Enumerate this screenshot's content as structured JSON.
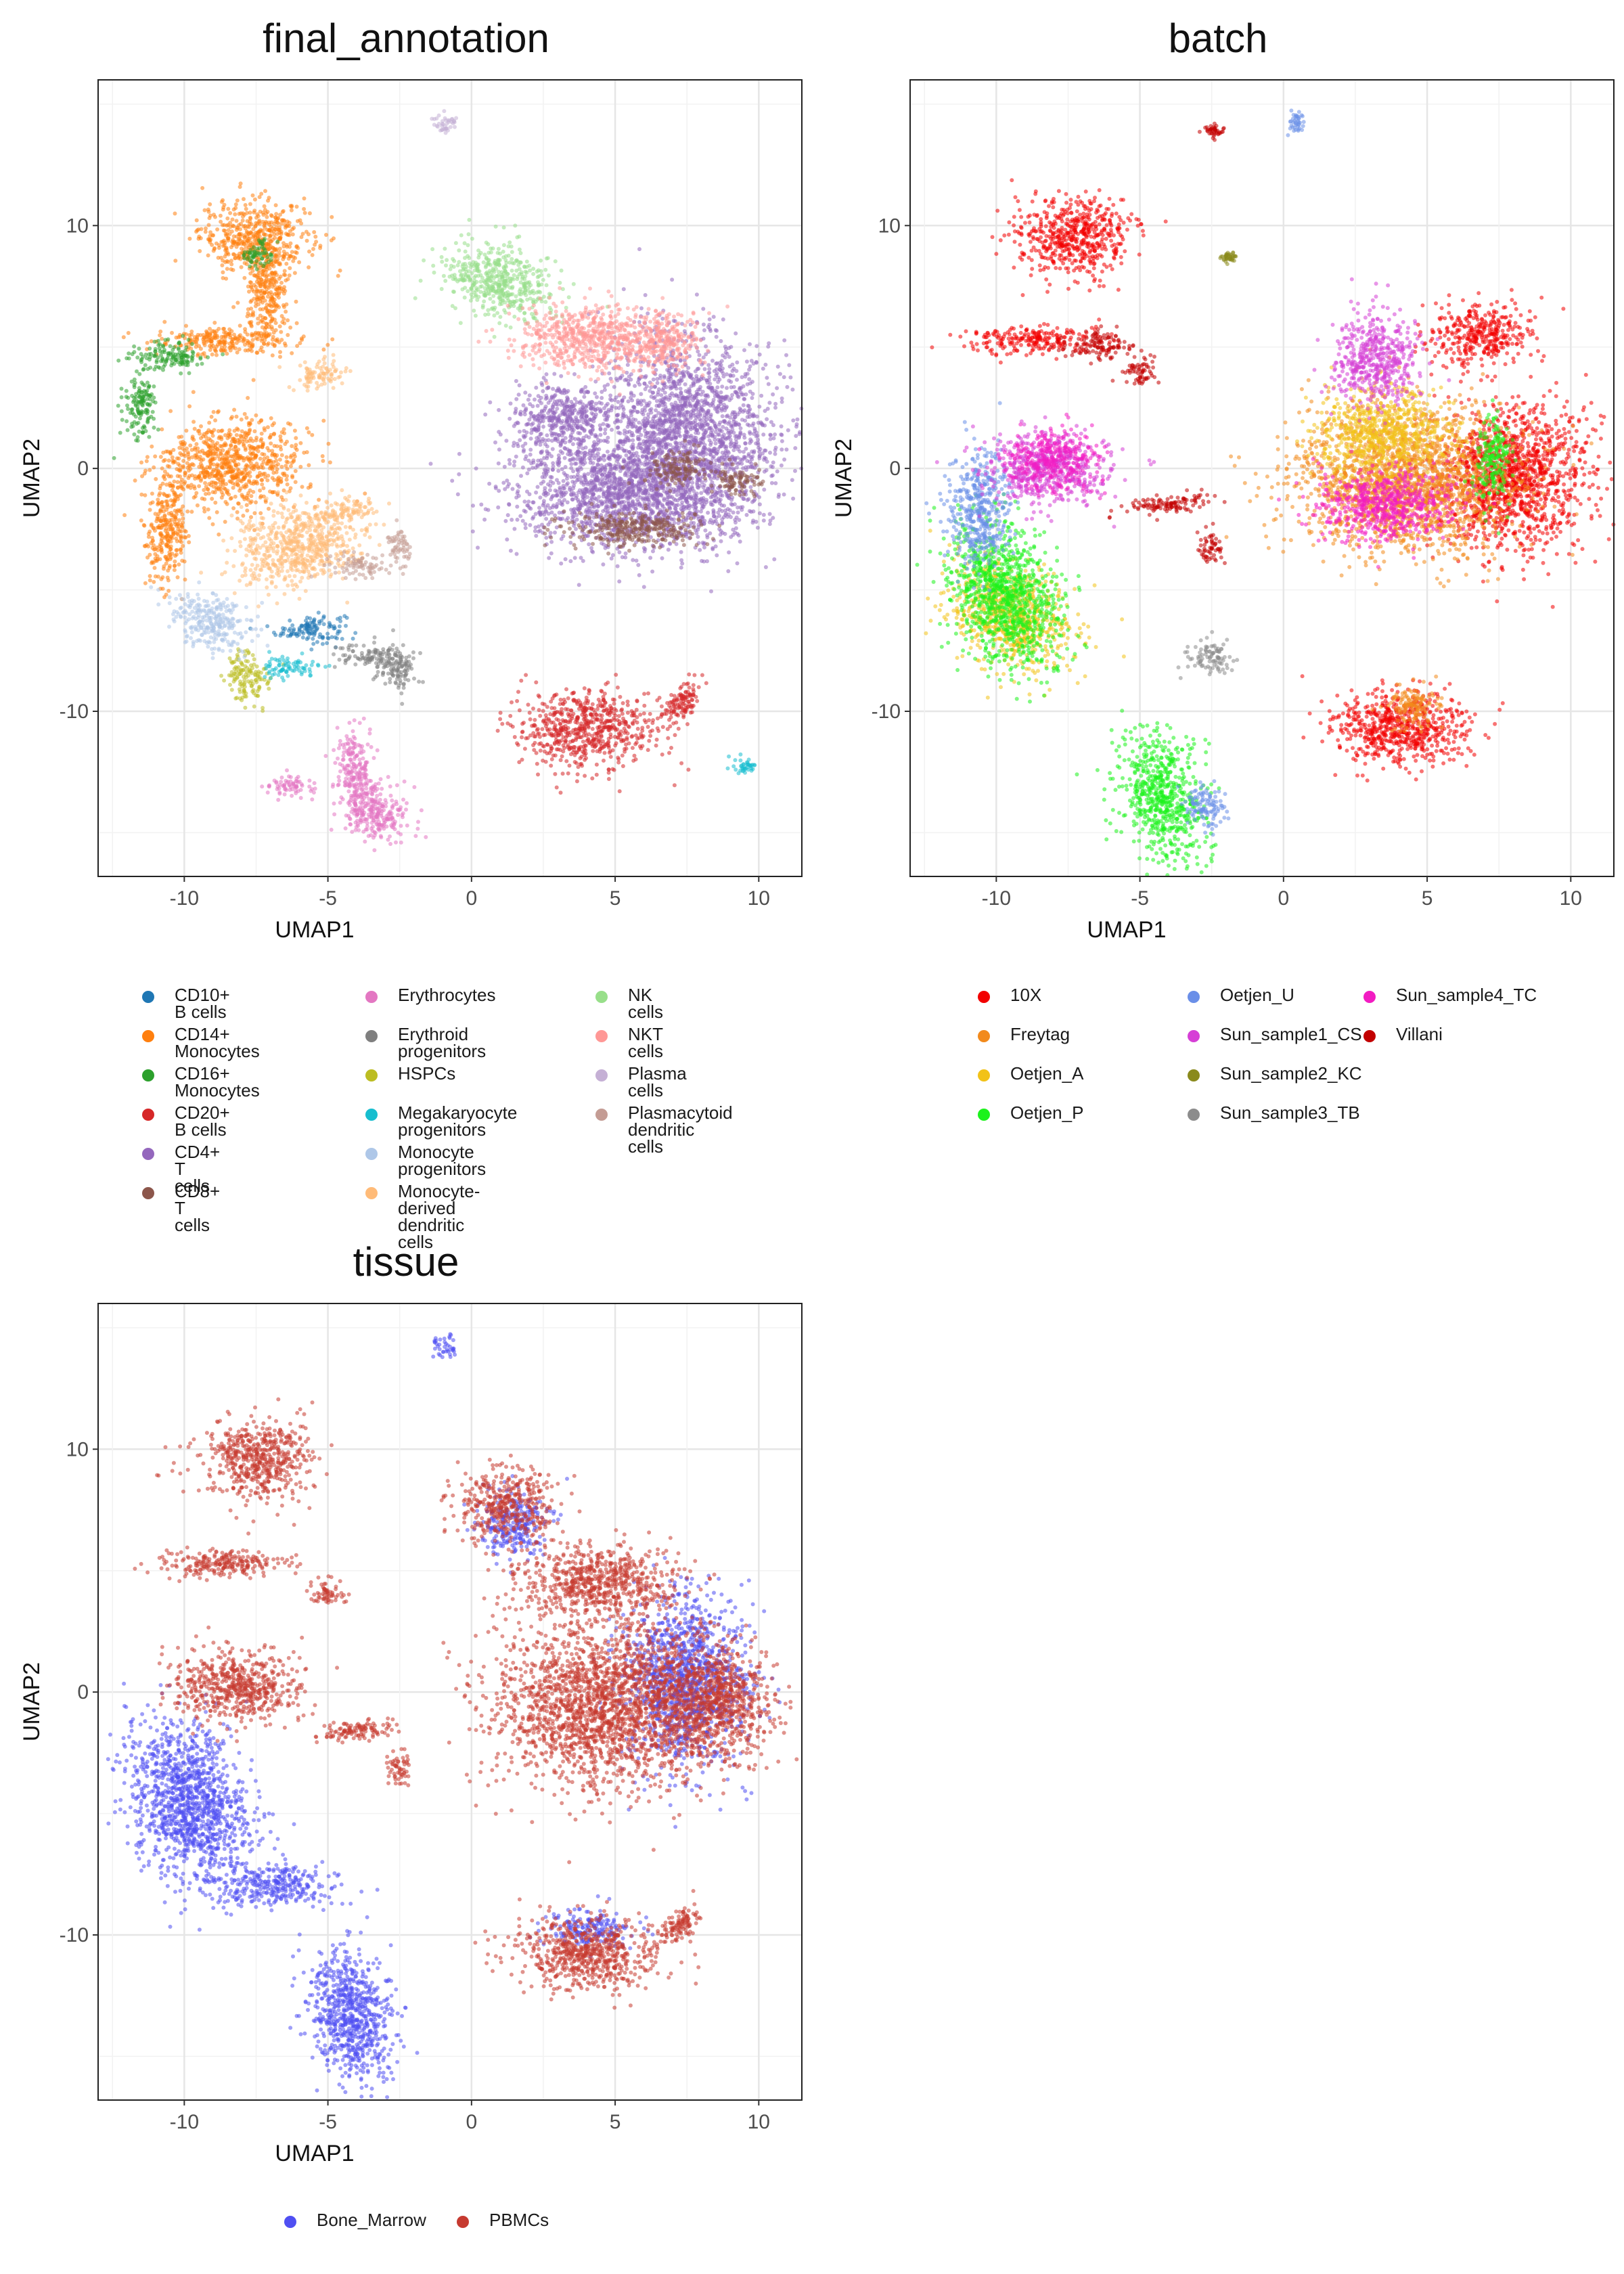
{
  "charts": [
    {
      "title": "final_annotation",
      "legend_columns": 3,
      "legend_entries": [
        {
          "label": "CD10+ B cells",
          "color": "#1f77b4"
        },
        {
          "label": "CD14+ Monocytes",
          "color": "#ff7f0e"
        },
        {
          "label": "CD16+ Monocytes",
          "color": "#2ca02c"
        },
        {
          "label": "CD20+ B cells",
          "color": "#d62728"
        },
        {
          "label": "CD4+ T cells",
          "color": "#9467bd"
        },
        {
          "label": "CD8+ T cells",
          "color": "#8c564b"
        },
        {
          "label": "Erythrocytes",
          "color": "#e377c2"
        },
        {
          "label": "Erythroid\nprogenitors",
          "color": "#7f7f7f"
        },
        {
          "label": "HSPCs",
          "color": "#bcbd22"
        },
        {
          "label": "Megakaryocyte\nprogenitors",
          "color": "#17becf"
        },
        {
          "label": "Monocyte progenitors",
          "color": "#aec7e8"
        },
        {
          "label": "Monocyte-derived\ndendritic cells",
          "color": "#ffbb78"
        },
        {
          "label": "NK cells",
          "color": "#98df8a"
        },
        {
          "label": "NKT cells",
          "color": "#ff9896"
        },
        {
          "label": "Plasma cells",
          "color": "#c5b0d5"
        },
        {
          "label": "Plasmacytoid\ndendritic cells",
          "color": "#c49c94"
        }
      ]
    },
    {
      "title": "batch",
      "legend_columns": 3,
      "legend_entries": [
        {
          "label": "10X",
          "color": "#f20000"
        },
        {
          "label": "Freytag",
          "color": "#f28a1c"
        },
        {
          "label": "Oetjen_A",
          "color": "#f2c218"
        },
        {
          "label": "Oetjen_P",
          "color": "#1cf21c"
        },
        {
          "label": "Oetjen_U",
          "color": "#6a8fe8"
        },
        {
          "label": "Sun_sample1_CS",
          "color": "#d63fd6"
        },
        {
          "label": "Sun_sample2_KC",
          "color": "#8a8a1c"
        },
        {
          "label": "Sun_sample3_TB",
          "color": "#8c8c8c"
        },
        {
          "label": "Sun_sample4_TC",
          "color": "#f21cc2"
        },
        {
          "label": "Villani",
          "color": "#c20000"
        }
      ]
    },
    {
      "title": "tissue",
      "legend_columns": 2,
      "legend_entries": [
        {
          "label": "Bone_Marrow",
          "color": "#4f4ff2"
        },
        {
          "label": "PBMCs",
          "color": "#c63a30"
        }
      ]
    }
  ],
  "axes": {
    "xlabel": "UMAP1",
    "ylabel": "UMAP2",
    "xlim": [
      -13,
      11.5
    ],
    "ylim": [
      -16.8,
      16
    ],
    "xticks": [
      -10,
      -5,
      0,
      5,
      10
    ],
    "yticks": [
      -10,
      0,
      10
    ],
    "xtick_labels": [
      "-10",
      "-5",
      "0",
      "5",
      "10"
    ],
    "ytick_labels": [
      "-10",
      "0",
      "10"
    ]
  },
  "chart_data": [
    {
      "type": "scatter",
      "title": "final_annotation",
      "xlabel": "UMAP1",
      "ylabel": "UMAP2",
      "xlim": [
        -13,
        11.5
      ],
      "ylim": [
        -16.8,
        16
      ],
      "grid": true,
      "legend_position": "bottom",
      "note_points": "approximate cluster regions (UMAP units) per category",
      "series": [
        {
          "name": "CD10+ B cells",
          "regions": [
            [
              -5.6,
              -6.6,
              0.8,
              0.4,
              0.1
            ]
          ]
        },
        {
          "name": "CD14+ Monocytes",
          "regions": [
            [
              -7.5,
              9.5,
              1.3,
              1.0,
              0.0
            ],
            [
              -7.1,
              7.0,
              0.5,
              1.5,
              0.0
            ],
            [
              -8.3,
              0.2,
              1.7,
              1.2,
              0.0
            ],
            [
              -10.6,
              -2.5,
              0.5,
              1.5,
              0.2
            ],
            [
              -8.7,
              5.3,
              1.5,
              0.4,
              0.0
            ]
          ]
        },
        {
          "name": "CD16+ Monocytes",
          "regions": [
            [
              -11.5,
              2.5,
              0.4,
              0.9,
              0.0
            ],
            [
              -10.5,
              4.6,
              0.9,
              0.4,
              0.0
            ],
            [
              -7.5,
              8.8,
              0.4,
              0.4,
              0.0
            ]
          ]
        },
        {
          "name": "CD20+ B cells",
          "regions": [
            [
              4.0,
              -10.7,
              1.7,
              1.0,
              0.0
            ],
            [
              7.3,
              -9.6,
              0.5,
              0.6,
              0.6
            ]
          ]
        },
        {
          "name": "CD4+ T cells",
          "regions": [
            [
              5.2,
              -1.0,
              2.6,
              1.5,
              0.0
            ],
            [
              7.5,
              1.5,
              2.0,
              2.6,
              0.0
            ],
            [
              3.2,
              2.0,
              1.2,
              1.0,
              0.0
            ]
          ]
        },
        {
          "name": "CD8+ T cells",
          "regions": [
            [
              5.6,
              -2.5,
              1.6,
              0.5,
              0.0
            ],
            [
              9.2,
              -0.5,
              0.6,
              0.4,
              0.0
            ],
            [
              7.2,
              0.0,
              0.7,
              0.5,
              0.0
            ]
          ]
        },
        {
          "name": "Erythrocytes",
          "regions": [
            [
              -4.0,
              -12.5,
              0.5,
              1.2,
              -0.3
            ],
            [
              -3.3,
              -14.2,
              0.9,
              0.7,
              0.0
            ],
            [
              -6.3,
              -13.1,
              0.6,
              0.3,
              0.0
            ]
          ]
        },
        {
          "name": "Erythroid progenitors",
          "regions": [
            [
              -2.6,
              -8.3,
              0.5,
              0.6,
              0.0
            ],
            [
              -3.5,
              -7.7,
              0.8,
              0.3,
              0.0
            ]
          ]
        },
        {
          "name": "HSPCs",
          "regions": [
            [
              -7.8,
              -8.6,
              0.5,
              0.7,
              0.0
            ]
          ]
        },
        {
          "name": "Megakaryocyte progenitors",
          "regions": [
            [
              -6.4,
              -8.2,
              0.7,
              0.3,
              0.0
            ],
            [
              9.5,
              -12.3,
              0.3,
              0.2,
              0.0
            ]
          ]
        },
        {
          "name": "Monocyte progenitors",
          "regions": [
            [
              -9.1,
              -6.3,
              0.9,
              0.8,
              -0.4
            ]
          ]
        },
        {
          "name": "Monocyte-derived dendritic cells",
          "regions": [
            [
              -6.0,
              -3.2,
              1.5,
              1.1,
              0.2
            ],
            [
              -5.2,
              3.9,
              0.6,
              0.4,
              0.0
            ],
            [
              -4.5,
              -1.8,
              0.8,
              0.3,
              0.5
            ]
          ]
        },
        {
          "name": "NK cells",
          "regions": [
            [
              1.0,
              7.7,
              1.3,
              1.0,
              -0.3
            ]
          ]
        },
        {
          "name": "NKT cells",
          "regions": [
            [
              3.9,
              5.4,
              1.7,
              0.9,
              0.0
            ],
            [
              6.5,
              5.2,
              1.0,
              0.8,
              0.0
            ]
          ]
        },
        {
          "name": "Plasma cells",
          "regions": [
            [
              -0.9,
              14.2,
              0.25,
              0.3,
              0.0
            ]
          ]
        },
        {
          "name": "Plasmacytoid dendritic cells",
          "regions": [
            [
              -3.8,
              -4.0,
              0.7,
              0.3,
              0.0
            ],
            [
              -2.5,
              -3.2,
              0.3,
              0.5,
              0.0
            ]
          ]
        }
      ]
    },
    {
      "type": "scatter",
      "title": "batch",
      "xlabel": "UMAP1",
      "ylabel": "UMAP2",
      "xlim": [
        -13,
        11.5
      ],
      "ylim": [
        -16.8,
        16
      ],
      "grid": true,
      "legend_position": "bottom",
      "series": [
        {
          "name": "10X",
          "regions": [
            [
              -7.3,
              9.5,
              1.3,
              1.1,
              0.0
            ],
            [
              4.0,
              -10.7,
              1.7,
              1.0,
              0.0
            ],
            [
              8.0,
              -0.3,
              1.8,
              2.0,
              0.0
            ],
            [
              6.8,
              5.5,
              1.2,
              0.8,
              0.0
            ],
            [
              -8.7,
              5.3,
              1.5,
              0.4,
              0.0
            ]
          ]
        },
        {
          "name": "Freytag",
          "regions": [
            [
              4.2,
              -0.5,
              2.5,
              2.0,
              0.0
            ],
            [
              4.5,
              -9.8,
              0.6,
              0.6,
              0.0
            ]
          ]
        },
        {
          "name": "Oetjen_A",
          "regions": [
            [
              -9.5,
              -6.0,
              1.4,
              1.4,
              -0.3
            ],
            [
              3.5,
              1.5,
              1.5,
              1.2,
              0.0
            ]
          ]
        },
        {
          "name": "Oetjen_P",
          "regions": [
            [
              -4.2,
              -13.5,
              1.0,
              1.7,
              -0.3
            ],
            [
              -9.7,
              -5.2,
              1.3,
              2.0,
              -0.3
            ],
            [
              7.3,
              0.3,
              0.4,
              1.2,
              0.0
            ]
          ]
        },
        {
          "name": "Oetjen_U",
          "regions": [
            [
              -10.6,
              -1.8,
              0.7,
              1.6,
              0.0
            ],
            [
              -2.8,
              -13.9,
              0.5,
              0.6,
              0.0
            ],
            [
              0.5,
              14.2,
              0.2,
              0.3,
              0.0
            ]
          ]
        },
        {
          "name": "Sun_sample1_CS",
          "regions": [
            [
              -8.3,
              0.0,
              1.4,
              1.0,
              0.0
            ],
            [
              3.2,
              4.5,
              1.0,
              1.3,
              0.0
            ]
          ]
        },
        {
          "name": "Sun_sample2_KC",
          "regions": [
            [
              -1.9,
              8.7,
              0.15,
              0.15,
              0.0
            ]
          ]
        },
        {
          "name": "Sun_sample3_TB",
          "regions": [
            [
              -2.5,
              -7.8,
              0.5,
              0.5,
              0.0
            ]
          ]
        },
        {
          "name": "Sun_sample4_TC",
          "regions": [
            [
              -8.0,
              0.3,
              1.1,
              0.8,
              0.0
            ],
            [
              3.5,
              -1.5,
              1.5,
              1.0,
              0.0
            ]
          ]
        },
        {
          "name": "Villani",
          "regions": [
            [
              -6.5,
              5.1,
              0.8,
              0.4,
              0.0
            ],
            [
              -4.0,
              -1.5,
              1.0,
              0.3,
              0.5
            ],
            [
              -2.5,
              -3.2,
              0.3,
              0.5,
              0.0
            ],
            [
              -5.0,
              4.0,
              0.4,
              0.4,
              0.0
            ],
            [
              -2.4,
              13.9,
              0.2,
              0.2,
              0.0
            ]
          ]
        }
      ]
    },
    {
      "type": "scatter",
      "title": "tissue",
      "xlabel": "UMAP1",
      "ylabel": "UMAP2",
      "xlim": [
        -13,
        11.5
      ],
      "ylim": [
        -16.8,
        16
      ],
      "grid": true,
      "legend_position": "bottom",
      "series": [
        {
          "name": "Bone_Marrow",
          "regions": [
            [
              -9.8,
              -4.6,
              1.4,
              2.3,
              -0.3
            ],
            [
              -4.2,
              -13.3,
              1.0,
              1.9,
              -0.3
            ],
            [
              -6.9,
              -8.0,
              1.3,
              0.6,
              0.0
            ],
            [
              7.5,
              0.5,
              1.4,
              2.3,
              0.0
            ],
            [
              -0.9,
              14.2,
              0.3,
              0.35,
              0.0
            ],
            [
              1.5,
              7.0,
              0.8,
              0.9,
              0.0
            ],
            [
              4.2,
              -9.8,
              1.0,
              0.5,
              0.0
            ]
          ]
        },
        {
          "name": "PBMCs",
          "regions": [
            [
              -7.5,
              9.5,
              1.3,
              1.1,
              0.0
            ],
            [
              -8.2,
              0.2,
              1.5,
              1.0,
              0.0
            ],
            [
              -8.7,
              5.3,
              1.5,
              0.4,
              0.0
            ],
            [
              4.8,
              -0.5,
              2.6,
              2.2,
              0.0
            ],
            [
              1.2,
              7.7,
              1.2,
              0.9,
              0.0
            ],
            [
              4.0,
              -10.7,
              1.7,
              1.0,
              0.0
            ],
            [
              8.5,
              -0.3,
              1.2,
              1.6,
              0.0
            ],
            [
              4.5,
              4.5,
              1.8,
              1.0,
              0.0
            ],
            [
              -4.0,
              -1.6,
              1.0,
              0.3,
              0.5
            ],
            [
              -2.5,
              -3.2,
              0.3,
              0.5,
              0.0
            ],
            [
              -5.0,
              4.0,
              0.4,
              0.4,
              0.0
            ],
            [
              7.3,
              -9.6,
              0.5,
              0.6,
              0.6
            ]
          ]
        }
      ]
    }
  ]
}
